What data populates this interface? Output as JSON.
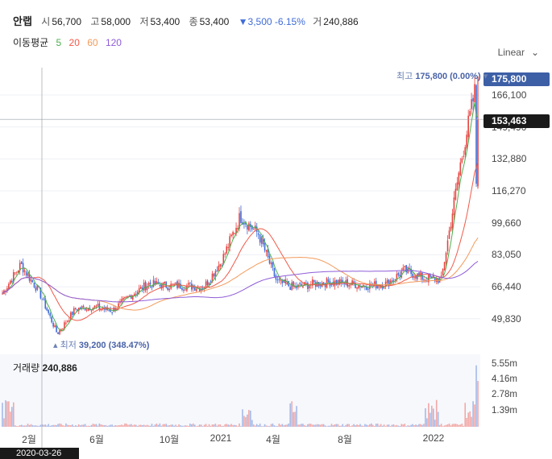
{
  "header": {
    "name": "안랩",
    "open_label": "시",
    "open": "56,700",
    "high_label": "고",
    "high": "58,000",
    "low_label": "저",
    "low": "53,400",
    "close_label": "종",
    "close": "53,400",
    "change": "▼3,500 -6.15%",
    "volume_label": "거",
    "volume": "240,886"
  },
  "moving_avg": {
    "label": "이동평균",
    "periods": [
      {
        "text": "5",
        "color": "#4caf50"
      },
      {
        "text": "20",
        "color": "#f05a4a"
      },
      {
        "text": "60",
        "color": "#f39a5c"
      },
      {
        "text": "120",
        "color": "#8e5cd8"
      }
    ]
  },
  "scale_toggle": {
    "label": "Linear",
    "icon": "chevron-down-icon"
  },
  "price_axis": {
    "ticks": [
      "166,100",
      "149,490",
      "132,880",
      "116,270",
      "99,660",
      "83,050",
      "66,440",
      "49,830"
    ]
  },
  "tags": {
    "high_tag": "175,800",
    "current_tag": "153,463"
  },
  "annotations": {
    "high_label": "최고",
    "high_value": "175,800 (0.00%)",
    "low_label": "최저",
    "low_value": "39,200 (348.47%)"
  },
  "volume": {
    "label": "거래량",
    "value": "240,886",
    "ticks": [
      "5.55m",
      "4.16m",
      "2.78m",
      "1.39m"
    ]
  },
  "x_axis": {
    "ticks": [
      "2월",
      "6월",
      "10월",
      "2021",
      "4월",
      "8월",
      "2022"
    ]
  },
  "crosshair_date": "2020-03-26",
  "colors": {
    "up": "#e8423f",
    "down": "#3f6cd8",
    "accent": "#3d5fa6"
  },
  "chart_data": {
    "type": "line",
    "ylim": [
      39200,
      180000
    ],
    "x": [
      "2019-12",
      "2020-01",
      "2020-02",
      "2020-03",
      "2020-04",
      "2020-05",
      "2020-06",
      "2020-07",
      "2020-08",
      "2020-09",
      "2020-10",
      "2020-11",
      "2020-12",
      "2021-01",
      "2021-02",
      "2021-03",
      "2021-04",
      "2021-05",
      "2021-06",
      "2021-07",
      "2021-08",
      "2021-09",
      "2021-10",
      "2021-11",
      "2021-12",
      "2022-01",
      "2022-02"
    ],
    "series": [
      {
        "values": [
          63000,
          78000,
          64000,
          42000,
          55000,
          56000,
          54000,
          62000,
          68000,
          67000,
          67000,
          66000,
          80000,
          103000,
          94000,
          69000,
          66000,
          68000,
          69000,
          68000,
          67000,
          68000,
          75000,
          71000,
          70000,
          128000,
          175800
        ]
      }
    ]
  }
}
